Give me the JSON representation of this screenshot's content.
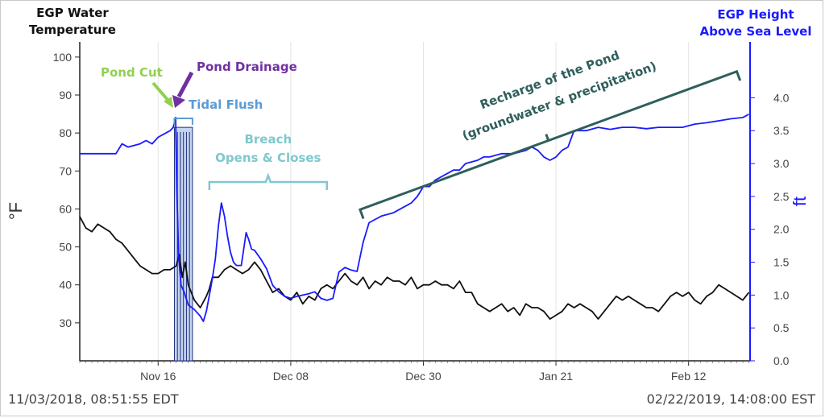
{
  "chart_data": {
    "type": "line",
    "left_header": [
      "EGP Water",
      "Temperature"
    ],
    "right_header": [
      "EGP Height",
      "Above Sea Level"
    ],
    "ylabel_left": "°F",
    "ylabel_right": "ft",
    "ylim_left": [
      20,
      104
    ],
    "ylim_right": [
      0,
      4.85
    ],
    "yticks_left": [
      30,
      40,
      50,
      60,
      70,
      80,
      90,
      100
    ],
    "yticks_right": [
      "0.0",
      "0.5",
      "1.0",
      "1.5",
      "2.0",
      "2.5",
      "3.0",
      "3.5",
      "4.0"
    ],
    "x_range_days": [
      0,
      111.2
    ],
    "x_ticks": [
      {
        "label": "Nov 16",
        "day": 13.0
      },
      {
        "label": "Dec 08",
        "day": 35.0
      },
      {
        "label": "Dec 30",
        "day": 57.0
      },
      {
        "label": "Jan 21",
        "day": 79.0
      },
      {
        "label": "Feb 12",
        "day": 101.0
      }
    ],
    "start_label": "11/03/2018, 08:51:55 EDT",
    "end_label": "02/22/2019, 14:08:00 EST",
    "colors": {
      "temperature": "#111111",
      "height": "#1a1aff",
      "right_axis": "#1a1aff",
      "pond_cut": "#92d050",
      "pond_drainage": "#7030a0",
      "tidal_flush": "#5b9bd5",
      "breach": "#7fc8cc",
      "recharge": "#2f5f5c",
      "tidal_fill": "#c5d4ef"
    },
    "series": [
      {
        "key": "temperature",
        "axis": "left",
        "points": [
          [
            0,
            58
          ],
          [
            1,
            55
          ],
          [
            2,
            54
          ],
          [
            3,
            56
          ],
          [
            4,
            55
          ],
          [
            5,
            54
          ],
          [
            6,
            52
          ],
          [
            7,
            51
          ],
          [
            8,
            49
          ],
          [
            9,
            47
          ],
          [
            10,
            45
          ],
          [
            11,
            44
          ],
          [
            12,
            43
          ],
          [
            13,
            43
          ],
          [
            14,
            44
          ],
          [
            15,
            44
          ],
          [
            16,
            45
          ],
          [
            16.5,
            48
          ],
          [
            17,
            42
          ],
          [
            17.5,
            46
          ],
          [
            18,
            40
          ],
          [
            19,
            36
          ],
          [
            20,
            34
          ],
          [
            21,
            37
          ],
          [
            21.5,
            39
          ],
          [
            22,
            42
          ],
          [
            23,
            42
          ],
          [
            24,
            44
          ],
          [
            25,
            45
          ],
          [
            26,
            44
          ],
          [
            27,
            43
          ],
          [
            28,
            44
          ],
          [
            29,
            46
          ],
          [
            30,
            44
          ],
          [
            31,
            41
          ],
          [
            32,
            38
          ],
          [
            33,
            39
          ],
          [
            34,
            37
          ],
          [
            35,
            36
          ],
          [
            36,
            38
          ],
          [
            37,
            35
          ],
          [
            38,
            37
          ],
          [
            39,
            36
          ],
          [
            40,
            39
          ],
          [
            41,
            40
          ],
          [
            42,
            39
          ],
          [
            43,
            41
          ],
          [
            44,
            43
          ],
          [
            45,
            41
          ],
          [
            46,
            40
          ],
          [
            47,
            42
          ],
          [
            48,
            39
          ],
          [
            49,
            41
          ],
          [
            50,
            40
          ],
          [
            51,
            42
          ],
          [
            52,
            41
          ],
          [
            53,
            41
          ],
          [
            54,
            40
          ],
          [
            55,
            42
          ],
          [
            56,
            39
          ],
          [
            57,
            40
          ],
          [
            58,
            40
          ],
          [
            59,
            41
          ],
          [
            60,
            40
          ],
          [
            61,
            40
          ],
          [
            62,
            39
          ],
          [
            63,
            41
          ],
          [
            64,
            38
          ],
          [
            65,
            38
          ],
          [
            66,
            35
          ],
          [
            67,
            34
          ],
          [
            68,
            33
          ],
          [
            69,
            34
          ],
          [
            70,
            35
          ],
          [
            71,
            33
          ],
          [
            72,
            34
          ],
          [
            73,
            32
          ],
          [
            74,
            35
          ],
          [
            75,
            34
          ],
          [
            76,
            34
          ],
          [
            77,
            33
          ],
          [
            78,
            31
          ],
          [
            79,
            32
          ],
          [
            80,
            33
          ],
          [
            81,
            35
          ],
          [
            82,
            34
          ],
          [
            83,
            35
          ],
          [
            84,
            34
          ],
          [
            85,
            33
          ],
          [
            86,
            31
          ],
          [
            87,
            33
          ],
          [
            88,
            35
          ],
          [
            89,
            37
          ],
          [
            90,
            36
          ],
          [
            91,
            37
          ],
          [
            92,
            36
          ],
          [
            93,
            35
          ],
          [
            94,
            34
          ],
          [
            95,
            34
          ],
          [
            96,
            33
          ],
          [
            97,
            35
          ],
          [
            98,
            37
          ],
          [
            99,
            38
          ],
          [
            100,
            37
          ],
          [
            101,
            38
          ],
          [
            102,
            36
          ],
          [
            103,
            35
          ],
          [
            104,
            37
          ],
          [
            105,
            38
          ],
          [
            106,
            40
          ],
          [
            107,
            39
          ],
          [
            108,
            38
          ],
          [
            109,
            37
          ],
          [
            110,
            36
          ],
          [
            111,
            38
          ]
        ]
      },
      {
        "key": "height",
        "axis": "right",
        "points": [
          [
            0,
            3.15
          ],
          [
            3,
            3.15
          ],
          [
            6,
            3.15
          ],
          [
            7,
            3.3
          ],
          [
            8,
            3.25
          ],
          [
            10,
            3.3
          ],
          [
            11,
            3.35
          ],
          [
            12,
            3.3
          ],
          [
            13,
            3.4
          ],
          [
            14,
            3.45
          ],
          [
            15,
            3.5
          ],
          [
            15.5,
            3.55
          ],
          [
            15.9,
            3.7
          ],
          [
            16.1,
            2.6
          ],
          [
            16.4,
            1.6
          ],
          [
            16.8,
            1.15
          ],
          [
            17.3,
            1.05
          ],
          [
            18,
            0.85
          ],
          [
            19,
            0.78
          ],
          [
            20,
            0.68
          ],
          [
            20.5,
            0.6
          ],
          [
            21,
            0.75
          ],
          [
            21.5,
            1.0
          ],
          [
            22,
            1.25
          ],
          [
            22.5,
            1.55
          ],
          [
            23,
            2.05
          ],
          [
            23.5,
            2.4
          ],
          [
            24,
            2.2
          ],
          [
            24.5,
            1.9
          ],
          [
            25,
            1.65
          ],
          [
            25.5,
            1.5
          ],
          [
            26,
            1.45
          ],
          [
            26.8,
            1.45
          ],
          [
            27.2,
            1.7
          ],
          [
            27.6,
            1.95
          ],
          [
            28,
            1.85
          ],
          [
            28.5,
            1.7
          ],
          [
            29,
            1.68
          ],
          [
            30,
            1.55
          ],
          [
            31,
            1.4
          ],
          [
            32,
            1.15
          ],
          [
            33,
            1.05
          ],
          [
            34,
            0.98
          ],
          [
            35,
            0.95
          ],
          [
            36,
            0.98
          ],
          [
            37,
            1.0
          ],
          [
            38,
            1.02
          ],
          [
            39,
            1.05
          ],
          [
            40,
            0.95
          ],
          [
            41,
            0.92
          ],
          [
            42,
            0.95
          ],
          [
            43,
            1.35
          ],
          [
            44,
            1.42
          ],
          [
            45,
            1.38
          ],
          [
            46,
            1.36
          ],
          [
            47,
            1.8
          ],
          [
            48,
            2.1
          ],
          [
            49,
            2.15
          ],
          [
            50,
            2.2
          ],
          [
            52,
            2.25
          ],
          [
            53,
            2.3
          ],
          [
            55,
            2.4
          ],
          [
            56,
            2.5
          ],
          [
            57,
            2.65
          ],
          [
            58,
            2.65
          ],
          [
            59,
            2.75
          ],
          [
            60,
            2.8
          ],
          [
            62,
            2.9
          ],
          [
            63,
            2.9
          ],
          [
            64,
            3.0
          ],
          [
            66,
            3.05
          ],
          [
            67,
            3.1
          ],
          [
            68,
            3.1
          ],
          [
            70,
            3.15
          ],
          [
            72,
            3.15
          ],
          [
            74,
            3.2
          ],
          [
            75,
            3.25
          ],
          [
            76,
            3.2
          ],
          [
            77,
            3.1
          ],
          [
            78,
            3.05
          ],
          [
            79,
            3.1
          ],
          [
            80,
            3.2
          ],
          [
            81,
            3.25
          ],
          [
            82,
            3.5
          ],
          [
            84,
            3.5
          ],
          [
            86,
            3.55
          ],
          [
            88,
            3.52
          ],
          [
            90,
            3.55
          ],
          [
            92,
            3.55
          ],
          [
            94,
            3.53
          ],
          [
            96,
            3.55
          ],
          [
            98,
            3.55
          ],
          [
            100,
            3.55
          ],
          [
            102,
            3.6
          ],
          [
            104,
            3.62
          ],
          [
            106,
            3.65
          ],
          [
            108,
            3.68
          ],
          [
            110,
            3.7
          ],
          [
            111,
            3.75
          ]
        ]
      }
    ],
    "annotations": {
      "pond_cut": "Pond Cut",
      "pond_drainage": "Pond Drainage",
      "tidal_flush": "Tidal Flush",
      "breach_line1": "Breach",
      "breach_line2": "Opens & Closes",
      "recharge_line1": "Recharge of the Pond",
      "recharge_line2": "(groundwater & precipitation)"
    },
    "tidal_flush_span_days": [
      15.7,
      18.7
    ],
    "breach_span_days": [
      21.5,
      41.0
    ],
    "recharge_span": {
      "start": [
        46.5,
        2.3
      ],
      "end": [
        109.0,
        4.4
      ]
    }
  }
}
